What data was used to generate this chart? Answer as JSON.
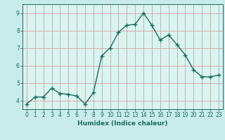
{
  "x": [
    0,
    1,
    2,
    3,
    4,
    5,
    6,
    7,
    8,
    9,
    10,
    11,
    12,
    13,
    14,
    15,
    16,
    17,
    18,
    19,
    20,
    21,
    22,
    23
  ],
  "y": [
    3.8,
    4.2,
    4.2,
    4.7,
    4.4,
    4.35,
    4.25,
    3.8,
    4.45,
    6.55,
    7.0,
    7.9,
    8.3,
    8.35,
    9.0,
    8.3,
    7.45,
    7.75,
    7.2,
    6.6,
    5.75,
    5.35,
    5.35,
    5.45
  ],
  "line_color": "#1a6b5a",
  "marker": "+",
  "marker_size": 4,
  "background_color": "#c8ecea",
  "plot_bg_color": "#d8f5f0",
  "grid_color": "#d4a0a0",
  "xlabel": "Humidex (Indice chaleur)",
  "ylabel": "",
  "title": "",
  "ylim": [
    3.5,
    9.5
  ],
  "xlim": [
    -0.5,
    23.5
  ],
  "yticks": [
    4,
    5,
    6,
    7,
    8,
    9
  ],
  "xticks": [
    0,
    1,
    2,
    3,
    4,
    5,
    6,
    7,
    8,
    9,
    10,
    11,
    12,
    13,
    14,
    15,
    16,
    17,
    18,
    19,
    20,
    21,
    22,
    23
  ],
  "xtick_labels": [
    "0",
    "1",
    "2",
    "3",
    "4",
    "5",
    "6",
    "7",
    "8",
    "9",
    "10",
    "11",
    "12",
    "13",
    "14",
    "15",
    "16",
    "17",
    "18",
    "19",
    "20",
    "21",
    "22",
    "23"
  ],
  "tick_fontsize": 5.5,
  "xlabel_fontsize": 6.5,
  "line_width": 1.0
}
